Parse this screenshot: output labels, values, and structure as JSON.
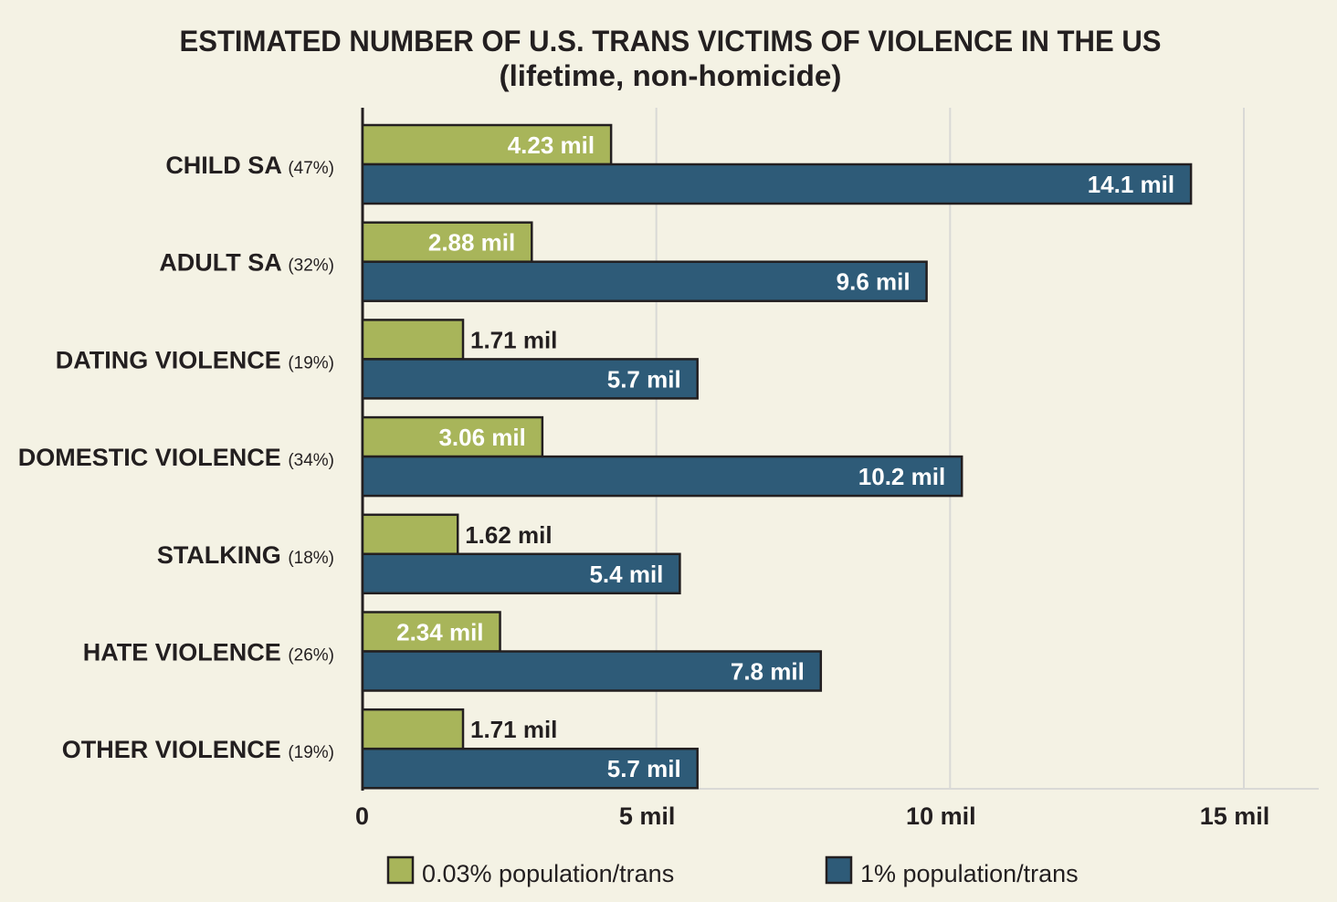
{
  "chart_data": {
    "type": "bar",
    "orientation": "horizontal",
    "title": "ESTIMATED NUMBER OF U.S. TRANS VICTIMS OF VIOLENCE IN THE US",
    "subtitle": "(lifetime, non-homicide)",
    "categories": [
      "CHILD SA",
      "ADULT SA",
      "DATING VIOLENCE",
      "DOMESTIC VIOLENCE",
      "STALKING",
      "HATE VIOLENCE",
      "OTHER VIOLENCE"
    ],
    "category_percents": [
      "(47%)",
      "(32%)",
      "(19%)",
      "(34%)",
      "(18%)",
      "(26%)",
      "(19%)"
    ],
    "series": [
      {
        "name": "0.03% population/trans",
        "color": "#a8b55a",
        "values": [
          4.23,
          2.88,
          1.71,
          3.06,
          1.62,
          2.34,
          1.71
        ],
        "labels": [
          "4.23 mil",
          "2.88 mil",
          "1.71 mil",
          "3.06 mil",
          "1.62 mil",
          "2.34 mil",
          "1.71 mil"
        ]
      },
      {
        "name": "1% population/trans",
        "color": "#2e5b78",
        "values": [
          14.1,
          9.6,
          5.7,
          10.2,
          5.4,
          7.8,
          5.7
        ],
        "labels": [
          "14.1 mil",
          "9.6 mil",
          "5.7 mil",
          "10.2 mil",
          "5.4 mil",
          "7.8 mil",
          "5.7 mil"
        ]
      }
    ],
    "xlim": [
      0,
      15
    ],
    "xticks": [
      0,
      5,
      10,
      15
    ],
    "xtick_labels": [
      "0",
      "5 mil",
      "10 mil",
      "15 mil"
    ],
    "grid": true,
    "legend_position": "bottom",
    "background": "#f4f2e4"
  }
}
